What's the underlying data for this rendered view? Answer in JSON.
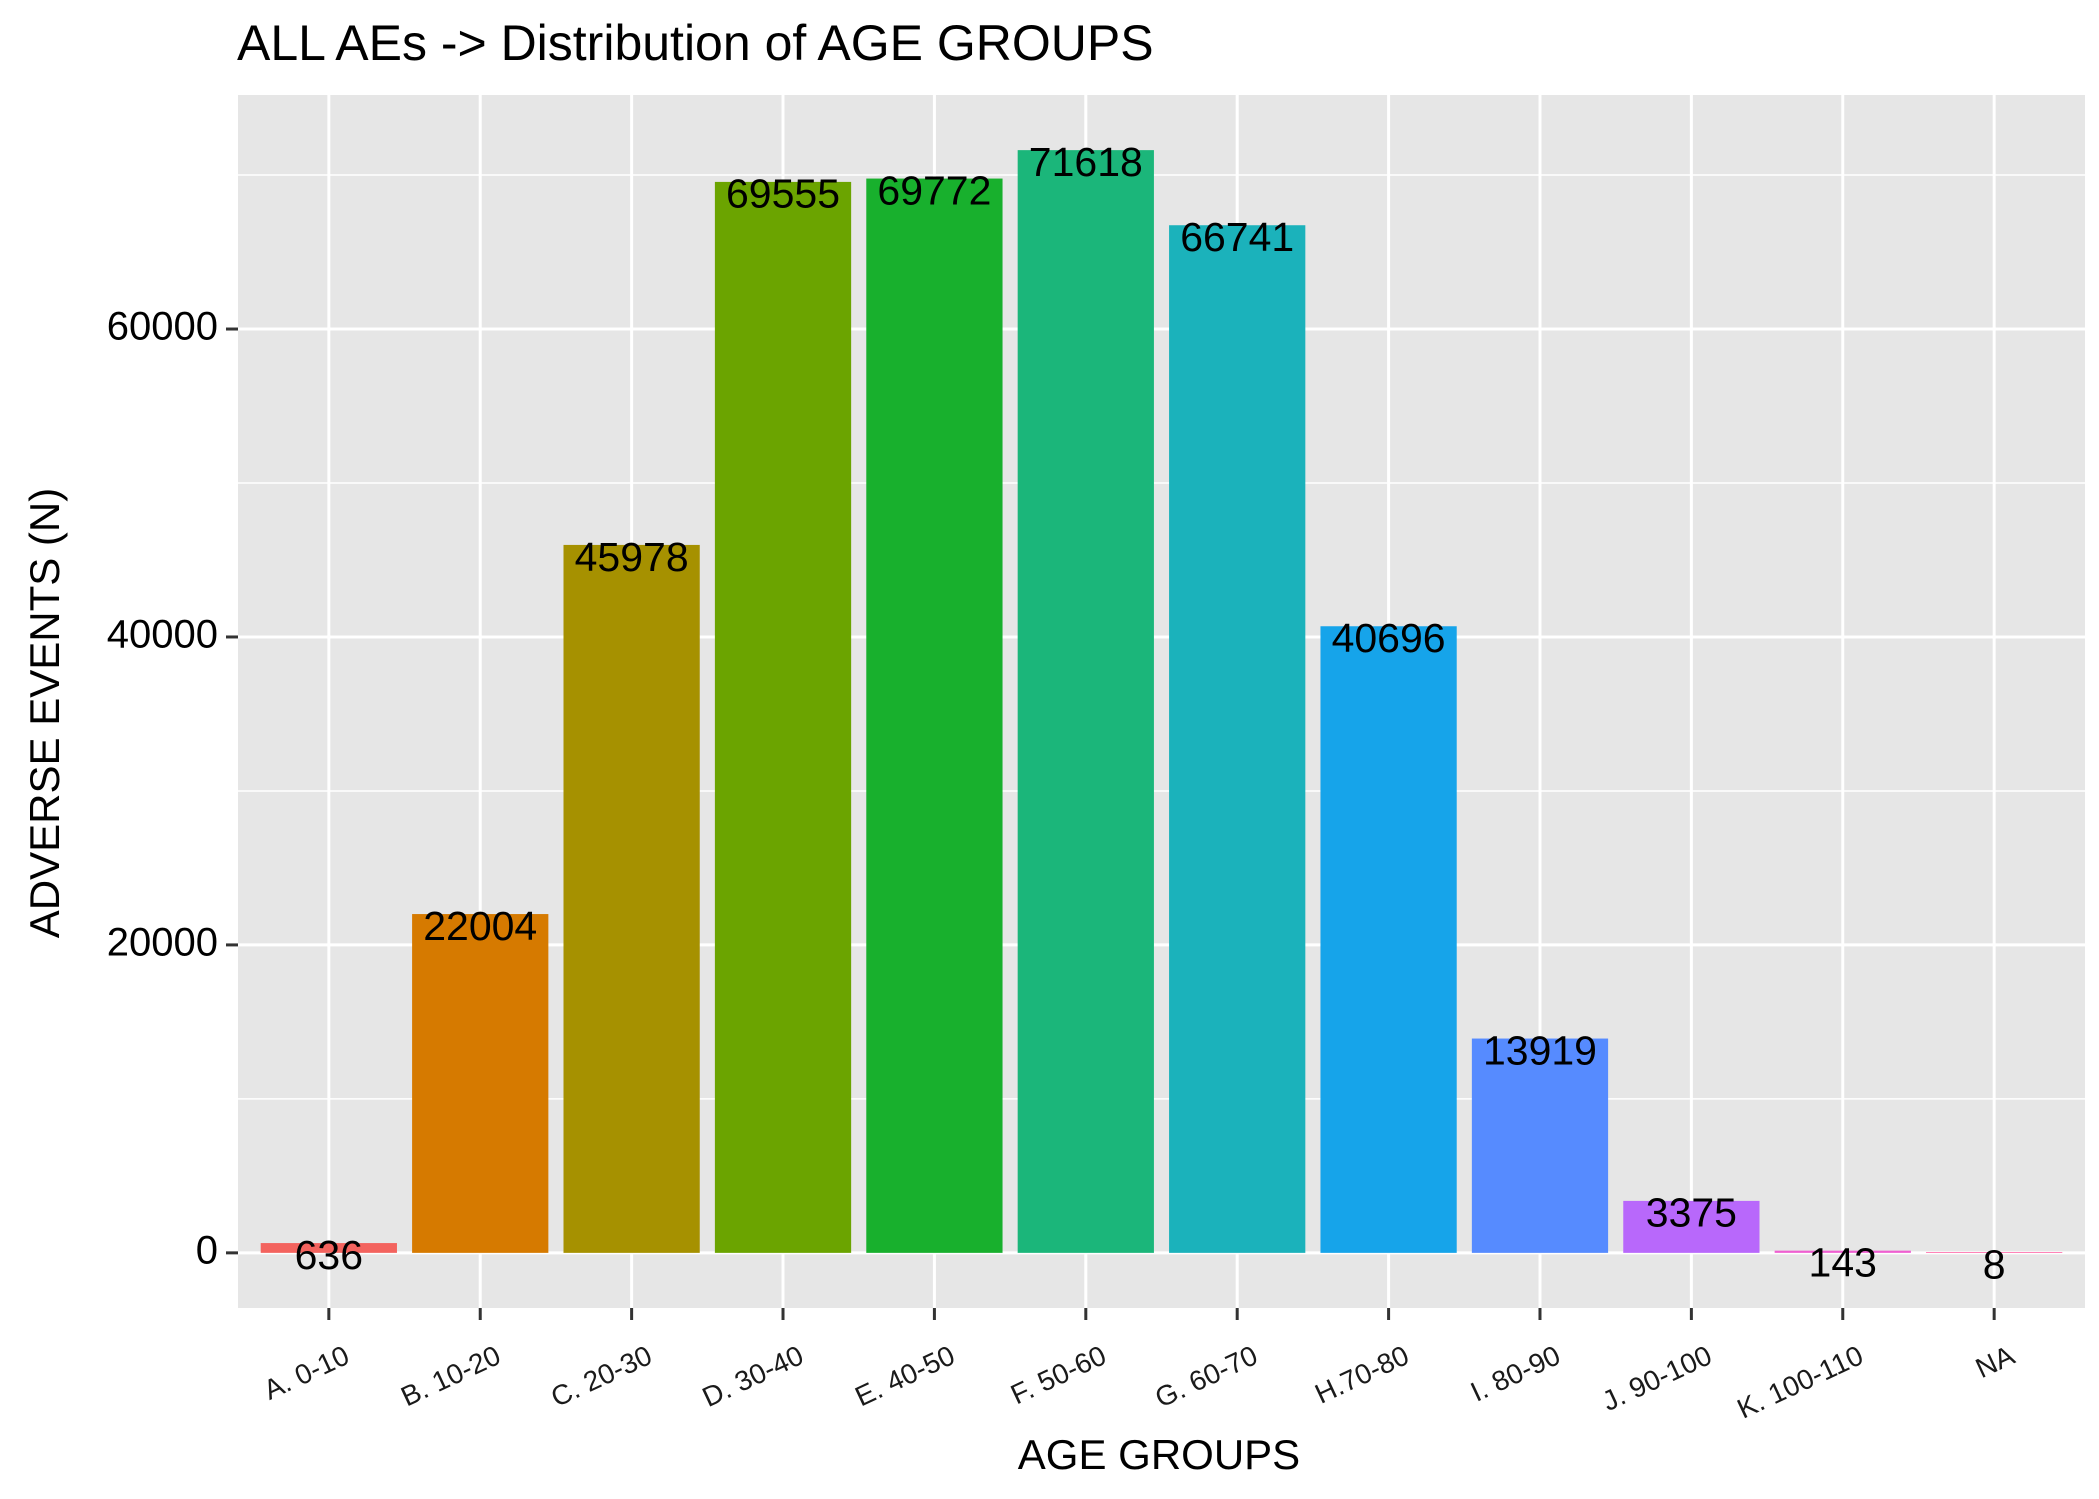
{
  "chart_data": {
    "type": "bar",
    "title": "ALL AEs -> Distribution of AGE GROUPS",
    "xlabel": "AGE GROUPS",
    "ylabel": "ADVERSE EVENTS (N)",
    "categories": [
      "A. 0-10",
      "B. 10-20",
      "C. 20-30",
      "D. 30-40",
      "E. 40-50",
      "F. 50-60",
      "G. 60-70",
      "H.70-80",
      "I. 80-90",
      "J. 90-100",
      "K. 100-110",
      "NA"
    ],
    "values": [
      636,
      22004,
      45978,
      69555,
      69772,
      71618,
      66741,
      40696,
      13919,
      3375,
      143,
      8
    ],
    "data_labels": [
      "636",
      "22004",
      "45978",
      "69555",
      "69772",
      "71618",
      "66741",
      "40696",
      "13919",
      "3375",
      "143",
      "8"
    ],
    "colors": [
      "#F8766D",
      "#DB8E00",
      "#AEA200",
      "#64B200",
      "#00BD5C",
      "#00C1A7",
      "#00BADE",
      "#00A6FF",
      "#B385FF",
      "#EF67EB",
      "#FF63B6",
      "#F8766D"
    ],
    "bar_colors_actual": [
      "#F3635E",
      "#D67A00",
      "#A69100",
      "#6BA400",
      "#18B02D",
      "#1BB67A",
      "#1BB2BB",
      "#16A4EA",
      "#568BFF",
      "#B868FB",
      "#EF5FD1",
      "#FF66A8"
    ],
    "yticks": [
      0,
      20000,
      40000,
      60000
    ],
    "ytick_labels": [
      "0",
      "20000",
      "40000",
      "60000"
    ],
    "ylim": [
      -3581,
      75199
    ],
    "grid": true,
    "panel_background": "#E6E6E6",
    "grid_color": "#FFFFFF",
    "legend": "none"
  }
}
